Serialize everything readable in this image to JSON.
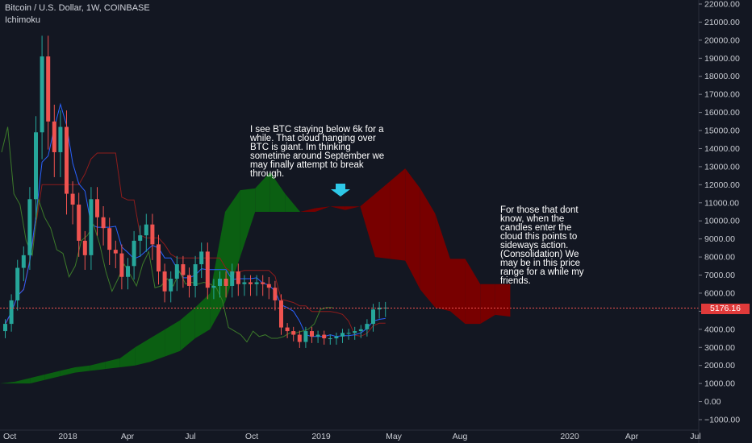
{
  "legend": {
    "symbol": "Bitcoin / U.S. Dollar, 1W, COINBASE",
    "indicator": "Ichimoku"
  },
  "annotations": [
    {
      "text": "I see BTC staying below 6k for  a\nwhile. That cloud hanging over\nBTC is giant. Im thinking\nsometime around September we\nmay finally attempt to break\nthrough."
    },
    {
      "text": "For those that dont\nknow, when the\ncandles enter the\ncloud this points to\nsideways action.\n(Consolidation) We\nmay be in this price\nrange for a while my\nfriends."
    }
  ],
  "colors": {
    "background": "#131722",
    "up": "#26a69a",
    "down": "#ef5350",
    "bull_cloud": "#0b5f12",
    "bear_cloud": "#780000",
    "conversion": "#2962ff",
    "base": "#8e1c1c",
    "lagging": "#3c7a2a",
    "arrow": "#2ec9e8",
    "price_line": "#ef5350"
  },
  "current_price": "5176.16",
  "chart_data": {
    "type": "candlestick",
    "title": "Bitcoin / U.S. Dollar, 1W, COINBASE",
    "indicator": "Ichimoku",
    "y_ticks": [
      "22000.00",
      "21000.00",
      "20000.00",
      "19000.00",
      "18000.00",
      "17000.00",
      "16000.00",
      "15000.00",
      "14000.00",
      "13000.00",
      "12000.00",
      "11000.00",
      "10000.00",
      "9000.00",
      "8000.00",
      "7000.00",
      "6000.00",
      "5000.00",
      "4000.00",
      "3000.00",
      "2000.00",
      "1000.00",
      "0.00",
      "−1000.00"
    ],
    "x_ticks": [
      "Oct",
      "2018",
      "Apr",
      "Jul",
      "Oct",
      "2019",
      "May",
      "Aug",
      "2020",
      "Apr",
      "Jul"
    ],
    "ylim": [
      -1000,
      22000
    ],
    "price_closes": [
      4300,
      5600,
      7400,
      8100,
      11200,
      14900,
      19100,
      15500,
      13800,
      15200,
      11500,
      10900,
      8900,
      8100,
      11200,
      10200,
      9600,
      8400,
      8200,
      6900,
      7500,
      8900,
      9200,
      9800,
      8700,
      7200,
      6100,
      6800,
      7600,
      7000,
      6400,
      7600,
      8300,
      6300,
      6400,
      6800,
      6400,
      7200,
      6500,
      6600,
      6500,
      6600,
      6500,
      6300,
      5600,
      4100,
      3900,
      3700,
      3300,
      3900,
      3600,
      3700,
      3500,
      3500,
      3600,
      3800,
      3800,
      3900,
      4000,
      4300,
      5100,
      5200,
      5200
    ],
    "cloud_top": [
      1000,
      1100,
      1300,
      1500,
      1700,
      1900,
      2000,
      2200,
      2400,
      3000,
      3500,
      4000,
      4500,
      5200,
      6000,
      10500,
      11700,
      11800,
      12700,
      11500,
      10500,
      10700,
      10800,
      10800,
      10800,
      11500,
      12200,
      12900,
      11800,
      10400,
      7900,
      7900,
      6500,
      6500,
      6500
    ],
    "cloud_bottom": [
      1000,
      1000,
      1000,
      1200,
      1400,
      1600,
      1700,
      1800,
      1900,
      2000,
      2200,
      2500,
      2800,
      3500,
      4000,
      5500,
      8000,
      10500,
      10500,
      10500,
      10500,
      10500,
      10800,
      10600,
      10800,
      8000,
      7900,
      7800,
      6200,
      5200,
      5000,
      4300,
      4300,
      4800,
      4700
    ]
  }
}
